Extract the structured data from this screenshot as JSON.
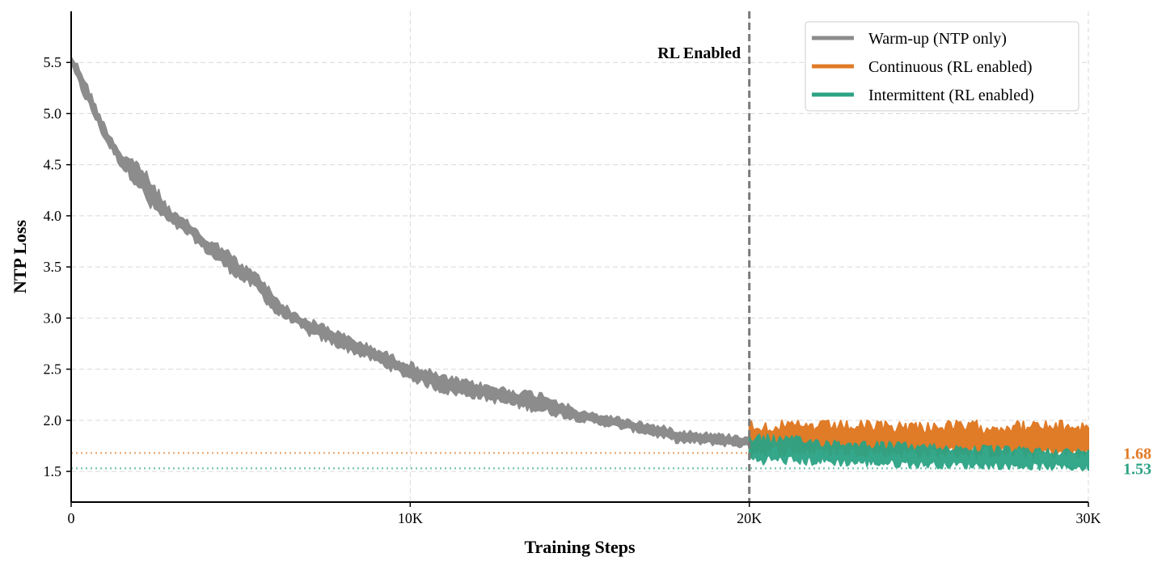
{
  "chart_data": {
    "type": "line",
    "title": "",
    "xlabel": "Training Steps",
    "ylabel": "NTP Loss",
    "xlim": [
      0,
      30000
    ],
    "ylim": [
      1.2,
      6.0
    ],
    "x_ticks": [
      {
        "value": 0,
        "label": "0"
      },
      {
        "value": 10000,
        "label": "10K"
      },
      {
        "value": 20000,
        "label": "20K"
      },
      {
        "value": 30000,
        "label": "30K"
      }
    ],
    "y_ticks": [
      {
        "value": 1.5,
        "label": "1.5"
      },
      {
        "value": 2.0,
        "label": "2.0"
      },
      {
        "value": 2.5,
        "label": "2.5"
      },
      {
        "value": 3.0,
        "label": "3.0"
      },
      {
        "value": 3.5,
        "label": "3.5"
      },
      {
        "value": 4.0,
        "label": "4.0"
      },
      {
        "value": 4.5,
        "label": "4.5"
      },
      {
        "value": 5.0,
        "label": "5.0"
      },
      {
        "value": 5.5,
        "label": "5.5"
      }
    ],
    "grid": true,
    "legend_position": "top-right",
    "series": [
      {
        "name": "Warm-up (NTP only)",
        "color": "#8c8c8c",
        "band": [
          {
            "x": 0,
            "lo": 5.45,
            "hi": 5.58
          },
          {
            "x": 300,
            "lo": 5.2,
            "hi": 5.45
          },
          {
            "x": 600,
            "lo": 5.0,
            "hi": 5.2
          },
          {
            "x": 1000,
            "lo": 4.72,
            "hi": 4.9
          },
          {
            "x": 1500,
            "lo": 4.45,
            "hi": 4.62
          },
          {
            "x": 2000,
            "lo": 4.25,
            "hi": 4.55
          },
          {
            "x": 2300,
            "lo": 4.05,
            "hi": 4.4
          },
          {
            "x": 3000,
            "lo": 3.88,
            "hi": 4.05
          },
          {
            "x": 3500,
            "lo": 3.78,
            "hi": 3.95
          },
          {
            "x": 4000,
            "lo": 3.62,
            "hi": 3.78
          },
          {
            "x": 4500,
            "lo": 3.48,
            "hi": 3.72
          },
          {
            "x": 5000,
            "lo": 3.35,
            "hi": 3.55
          },
          {
            "x": 5500,
            "lo": 3.25,
            "hi": 3.45
          },
          {
            "x": 6000,
            "lo": 3.02,
            "hi": 3.25
          },
          {
            "x": 6500,
            "lo": 2.95,
            "hi": 3.08
          },
          {
            "x": 7000,
            "lo": 2.82,
            "hi": 3.0
          },
          {
            "x": 7500,
            "lo": 2.75,
            "hi": 2.95
          },
          {
            "x": 8000,
            "lo": 2.68,
            "hi": 2.86
          },
          {
            "x": 9000,
            "lo": 2.55,
            "hi": 2.72
          },
          {
            "x": 10000,
            "lo": 2.38,
            "hi": 2.58
          },
          {
            "x": 11000,
            "lo": 2.25,
            "hi": 2.45
          },
          {
            "x": 12000,
            "lo": 2.2,
            "hi": 2.38
          },
          {
            "x": 13000,
            "lo": 2.12,
            "hi": 2.32
          },
          {
            "x": 14000,
            "lo": 2.05,
            "hi": 2.28
          },
          {
            "x": 15000,
            "lo": 1.98,
            "hi": 2.1
          },
          {
            "x": 16000,
            "lo": 1.92,
            "hi": 2.05
          },
          {
            "x": 17000,
            "lo": 1.85,
            "hi": 1.98
          },
          {
            "x": 18000,
            "lo": 1.76,
            "hi": 1.92
          },
          {
            "x": 19000,
            "lo": 1.75,
            "hi": 1.88
          },
          {
            "x": 20000,
            "lo": 1.72,
            "hi": 1.86
          }
        ]
      },
      {
        "name": "Continuous (RL enabled)",
        "color": "#e07b28",
        "band": [
          {
            "x": 20000,
            "lo": 1.65,
            "hi": 2.0
          },
          {
            "x": 22500,
            "lo": 1.65,
            "hi": 2.0
          },
          {
            "x": 25000,
            "lo": 1.63,
            "hi": 2.0
          },
          {
            "x": 27500,
            "lo": 1.63,
            "hi": 2.0
          },
          {
            "x": 30000,
            "lo": 1.62,
            "hi": 2.0
          }
        ]
      },
      {
        "name": "Intermittent (RL enabled)",
        "color": "#2ba384",
        "band": [
          {
            "x": 20000,
            "lo": 1.57,
            "hi": 1.88
          },
          {
            "x": 22500,
            "lo": 1.55,
            "hi": 1.82
          },
          {
            "x": 25000,
            "lo": 1.53,
            "hi": 1.78
          },
          {
            "x": 27500,
            "lo": 1.52,
            "hi": 1.75
          },
          {
            "x": 30000,
            "lo": 1.5,
            "hi": 1.72
          }
        ]
      }
    ],
    "reference_lines": [
      {
        "y": 1.68,
        "label": "1.68",
        "color": "#e07b28"
      },
      {
        "y": 1.53,
        "label": "1.53",
        "color": "#2ba384"
      }
    ],
    "annotation": {
      "x": 20000,
      "text": "RL Enabled"
    }
  }
}
